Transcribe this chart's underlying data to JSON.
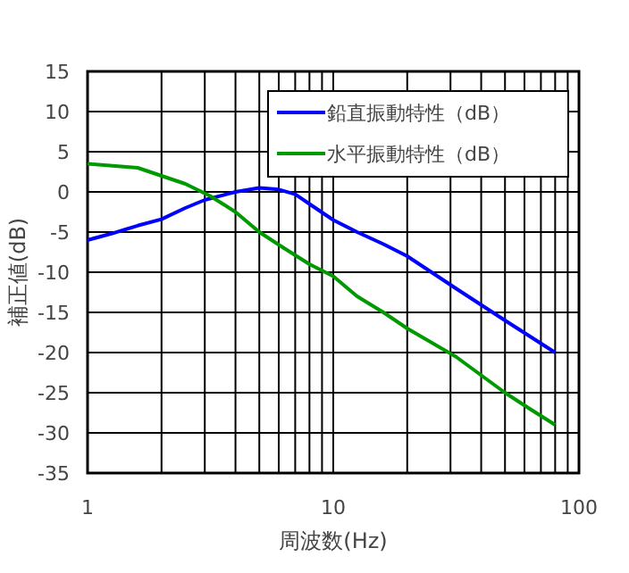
{
  "chart_data": {
    "type": "line",
    "xlabel": "周波数(Hz)",
    "ylabel": "補正値(dB)",
    "log": "x",
    "grid": true,
    "legend": "top right",
    "marker": "none",
    "line_style": "solid",
    "xlim": [
      1,
      100
    ],
    "ylim": [
      -35,
      15
    ],
    "xticks": [
      1,
      {
        "value": 2,
        "label": null
      },
      {
        "value": 3,
        "label": null
      },
      {
        "value": 4,
        "label": null
      },
      {
        "value": 5,
        "label": null
      },
      {
        "value": 6,
        "label": null
      },
      {
        "value": 7,
        "label": null
      },
      {
        "value": 8,
        "label": null
      },
      {
        "value": 9,
        "label": null
      },
      10,
      {
        "value": 20,
        "label": null
      },
      {
        "value": 30,
        "label": null
      },
      {
        "value": 40,
        "label": null
      },
      {
        "value": 50,
        "label": null
      },
      {
        "value": 60,
        "label": null
      },
      {
        "value": 70,
        "label": null
      },
      {
        "value": 80,
        "label": null
      },
      {
        "value": 90,
        "label": null
      },
      100
    ],
    "yticks": [
      -35,
      -30,
      -25,
      -20,
      -15,
      -10,
      -5,
      0,
      5,
      10,
      15
    ],
    "series": [
      {
        "name": "鉛直振動特性（dB）",
        "color": "#0000ff",
        "x": [
          1,
          1.25,
          1.6,
          2,
          2.5,
          3,
          4,
          5,
          6,
          7,
          8,
          10,
          12.5,
          16,
          20,
          31.5,
          50,
          80
        ],
        "values": [
          -6,
          -5.2,
          -4.2,
          -3.4,
          -2,
          -1,
          0,
          0.5,
          0.3,
          -0.3,
          -1.5,
          -3.5,
          -5,
          -6.5,
          -8,
          -12,
          -16,
          -20
        ]
      },
      {
        "name": "水平振動特性（dB）",
        "color": "#009900",
        "x": [
          1,
          1.6,
          2,
          2.5,
          3.15,
          4,
          5,
          6.3,
          8,
          10,
          12.5,
          16,
          20,
          31.5,
          50,
          63,
          80
        ],
        "values": [
          3.5,
          3,
          2,
          1,
          -0.5,
          -2.5,
          -5,
          -7,
          -9,
          -10.5,
          -13,
          -15,
          -17,
          -20.5,
          -25,
          -27,
          -29
        ]
      }
    ]
  }
}
